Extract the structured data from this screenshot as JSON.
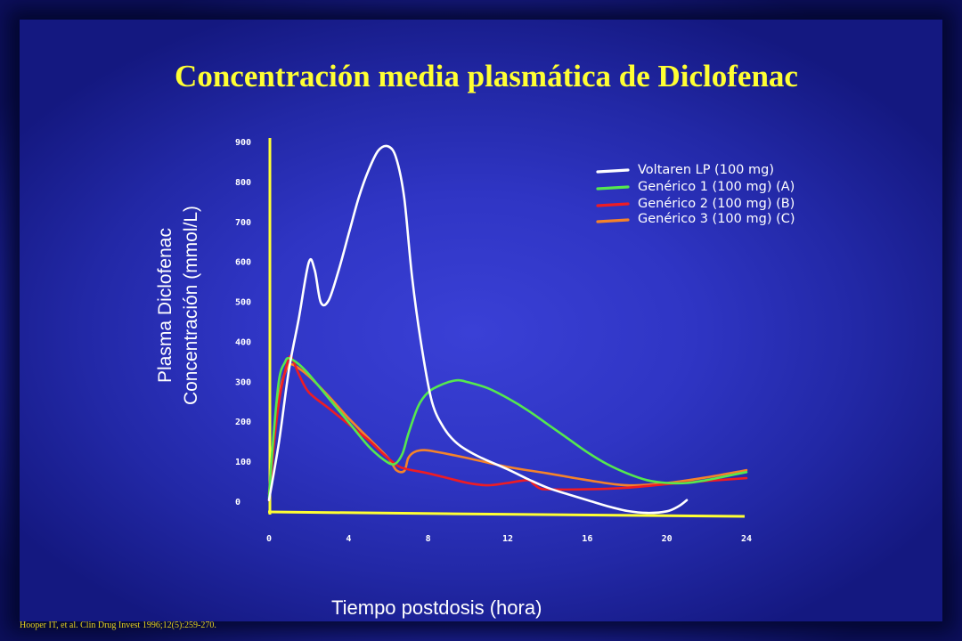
{
  "slide": {
    "title": "Concentración media plasmática de Diclofenac",
    "citation": "Hooper IT, et al. Clin Drug Invest 1996;12(5):259-270."
  },
  "chart_data": {
    "type": "line",
    "title": "Concentración media plasmática de Diclofenac",
    "xlabel": "Tiempo postdosis (hora)",
    "ylabel_lines": [
      "Plasma Diclofenac",
      "Concentración (mmol/L)"
    ],
    "xlim": [
      0,
      24
    ],
    "ylim": [
      0,
      900
    ],
    "x_ticks": [
      0,
      4,
      8,
      12,
      16,
      20,
      24
    ],
    "y_ticks": [
      0,
      100,
      200,
      300,
      400,
      500,
      600,
      700,
      800,
      900
    ],
    "grid": false,
    "legend_position": "top-right",
    "series": [
      {
        "name": "Voltaren LP (100 mg)",
        "color": "#ffffff",
        "points": [
          [
            0,
            5
          ],
          [
            0.5,
            150
          ],
          [
            1,
            330
          ],
          [
            1.5,
            460
          ],
          [
            2,
            600
          ],
          [
            2.3,
            580
          ],
          [
            2.6,
            500
          ],
          [
            3,
            505
          ],
          [
            3.5,
            580
          ],
          [
            4,
            670
          ],
          [
            4.5,
            760
          ],
          [
            5,
            830
          ],
          [
            5.5,
            880
          ],
          [
            6,
            890
          ],
          [
            6.4,
            860
          ],
          [
            6.8,
            760
          ],
          [
            7.2,
            560
          ],
          [
            7.7,
            380
          ],
          [
            8.2,
            250
          ],
          [
            8.8,
            185
          ],
          [
            9.5,
            145
          ],
          [
            10.5,
            115
          ],
          [
            12,
            82
          ],
          [
            13,
            58
          ],
          [
            14,
            36
          ],
          [
            15,
            20
          ],
          [
            16,
            5
          ],
          [
            17,
            -10
          ],
          [
            18,
            -22
          ],
          [
            19,
            -27
          ],
          [
            20,
            -23
          ],
          [
            20.6,
            -10
          ],
          [
            21,
            5
          ]
        ]
      },
      {
        "name": "Genérico 1 (100 mg) (A)",
        "color": "#55e84f",
        "points": [
          [
            0,
            10
          ],
          [
            0.2,
            150
          ],
          [
            0.5,
            305
          ],
          [
            0.8,
            350
          ],
          [
            1,
            360
          ],
          [
            1.5,
            345
          ],
          [
            2,
            320
          ],
          [
            3,
            260
          ],
          [
            4,
            200
          ],
          [
            5,
            140
          ],
          [
            5.8,
            105
          ],
          [
            6.3,
            95
          ],
          [
            6.7,
            120
          ],
          [
            7,
            170
          ],
          [
            7.5,
            240
          ],
          [
            8,
            275
          ],
          [
            8.5,
            290
          ],
          [
            9,
            300
          ],
          [
            9.5,
            305
          ],
          [
            10,
            300
          ],
          [
            11,
            285
          ],
          [
            12,
            260
          ],
          [
            13,
            230
          ],
          [
            14,
            195
          ],
          [
            15,
            160
          ],
          [
            16,
            125
          ],
          [
            17,
            95
          ],
          [
            18,
            72
          ],
          [
            19,
            55
          ],
          [
            20,
            48
          ],
          [
            21,
            48
          ],
          [
            22,
            55
          ],
          [
            23,
            65
          ],
          [
            24,
            75
          ]
        ]
      },
      {
        "name": "Genérico 2 (100 mg) (B)",
        "color": "#ee1c24",
        "points": [
          [
            0,
            5
          ],
          [
            0.3,
            170
          ],
          [
            0.6,
            280
          ],
          [
            1,
            360
          ],
          [
            1.2,
            355
          ],
          [
            1.5,
            320
          ],
          [
            2,
            275
          ],
          [
            3,
            235
          ],
          [
            4,
            195
          ],
          [
            5,
            155
          ],
          [
            5.8,
            118
          ],
          [
            6.5,
            90
          ],
          [
            7,
            82
          ],
          [
            8,
            72
          ],
          [
            9,
            60
          ],
          [
            10,
            48
          ],
          [
            11,
            42
          ],
          [
            12,
            48
          ],
          [
            13,
            55
          ],
          [
            13.3,
            45
          ],
          [
            13.6,
            35
          ],
          [
            14,
            32
          ],
          [
            16,
            32
          ],
          [
            18,
            36
          ],
          [
            20,
            45
          ],
          [
            22,
            53
          ],
          [
            24,
            60
          ]
        ]
      },
      {
        "name": "Genérico 3 (100 mg) (C)",
        "color": "#f5832a",
        "points": [
          [
            0,
            20
          ],
          [
            0.3,
            200
          ],
          [
            0.6,
            290
          ],
          [
            0.9,
            335
          ],
          [
            1.1,
            345
          ],
          [
            1.5,
            335
          ],
          [
            2,
            315
          ],
          [
            3,
            265
          ],
          [
            4,
            210
          ],
          [
            5,
            160
          ],
          [
            6,
            110
          ],
          [
            6.4,
            80
          ],
          [
            6.8,
            78
          ],
          [
            7,
            110
          ],
          [
            7.3,
            125
          ],
          [
            7.8,
            130
          ],
          [
            8.5,
            125
          ],
          [
            10,
            110
          ],
          [
            12,
            88
          ],
          [
            14,
            72
          ],
          [
            16,
            55
          ],
          [
            18,
            42
          ],
          [
            20,
            48
          ],
          [
            22,
            62
          ],
          [
            24,
            80
          ]
        ]
      }
    ]
  }
}
